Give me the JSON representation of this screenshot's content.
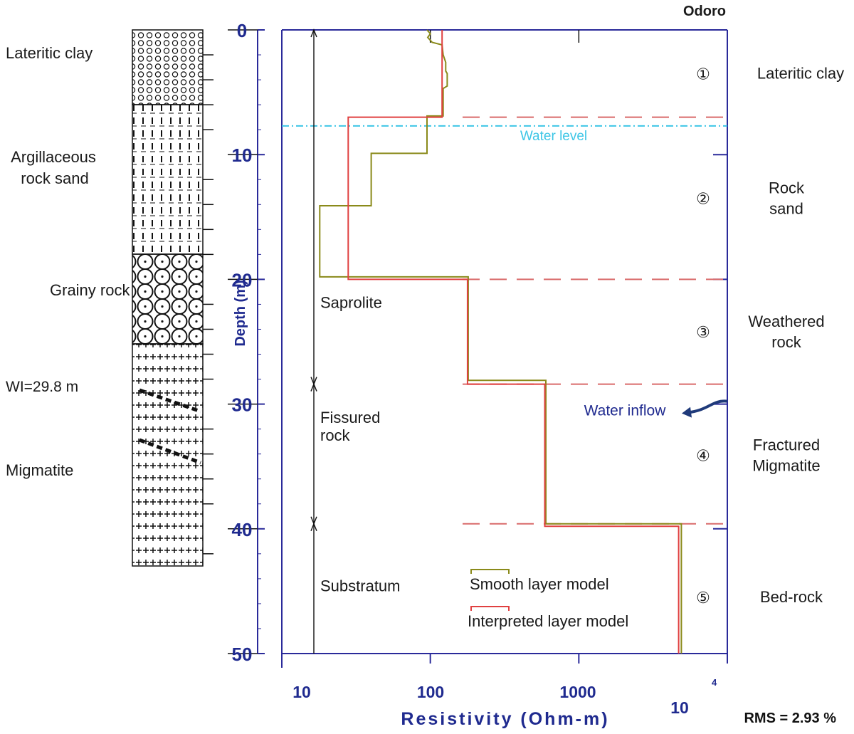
{
  "chart_data": {
    "type": "line",
    "title": "Odoro",
    "xlabel": "Resistivity  (Ohm-m)",
    "ylabel": "Depth (m)",
    "x_scale": "log",
    "xlim": [
      10,
      10000
    ],
    "ylim": [
      0,
      50
    ],
    "x_ticks": [
      "10",
      "100",
      "1000",
      "10"
    ],
    "x_tick_exponent": "4",
    "y_ticks": [
      "0",
      "10",
      "20",
      "30",
      "40",
      "50"
    ],
    "rms_text": "RMS = 2.93 %",
    "series": [
      {
        "name": "Smooth layer model",
        "color": "#8a8a1a",
        "points": [
          [
            95,
            0
          ],
          [
            100,
            0.3
          ],
          [
            96,
            0.6
          ],
          [
            103,
            1.0
          ],
          [
            120,
            1.2
          ],
          [
            122,
            2.0
          ],
          [
            127,
            2.6
          ],
          [
            127,
            3.3
          ],
          [
            130,
            3.5
          ],
          [
            130,
            4.5
          ],
          [
            122,
            4.7
          ],
          [
            122,
            6.9
          ],
          [
            95,
            6.9
          ],
          [
            95,
            9.9
          ],
          [
            40,
            9.9
          ],
          [
            40,
            14.1
          ],
          [
            18,
            14.1
          ],
          [
            18,
            19.8
          ],
          [
            180,
            19.8
          ],
          [
            180,
            28.1
          ],
          [
            600,
            28.1
          ],
          [
            600,
            39.6
          ],
          [
            4900,
            39.6
          ],
          [
            4900,
            50
          ]
        ]
      },
      {
        "name": "Interpreted layer model",
        "color": "#e04040",
        "points": [
          [
            120,
            0
          ],
          [
            120,
            7.0
          ],
          [
            28,
            7.0
          ],
          [
            28,
            20.0
          ],
          [
            178,
            20.0
          ],
          [
            178,
            28.4
          ],
          [
            590,
            28.4
          ],
          [
            590,
            39.8
          ],
          [
            4700,
            39.8
          ],
          [
            4700,
            50
          ]
        ]
      }
    ],
    "boundary_depths": [
      7.0,
      20.0,
      28.4,
      39.6
    ],
    "water_level_depth": 7.7,
    "water_level_label": "Water level",
    "water_inflow_label": "Water inflow",
    "water_inflow_depth": 30,
    "zones": [
      {
        "label": "Saprolite",
        "from": 0,
        "to": 28.4
      },
      {
        "label": "Fissured rock",
        "from": 28.4,
        "to": 39.6
      },
      {
        "label": "Substratum",
        "from": 39.6,
        "to": 50
      }
    ],
    "layers": [
      {
        "number": "①",
        "name": "Lateritic clay",
        "depth": 3.5
      },
      {
        "number": "②",
        "name": "Rock sand",
        "depth": 13.5
      },
      {
        "number": "③",
        "name": "Weathered rock",
        "depth": 24.2
      },
      {
        "number": "④",
        "name": "Fractured Migmatite",
        "depth": 34.1
      },
      {
        "number": "⑤",
        "name": "Bed-rock",
        "depth": 45.5
      }
    ],
    "lithology": [
      {
        "label": "Lateritic clay",
        "from": 0,
        "to": 6,
        "pattern": "circles"
      },
      {
        "label": "Argillaceous rock sand",
        "from": 6,
        "to": 18,
        "pattern": "dashes"
      },
      {
        "label": "Grainy rock",
        "from": 18,
        "to": 25.5,
        "pattern": "gravel"
      },
      {
        "label": "Migmatite",
        "from": 25.5,
        "to": 43,
        "pattern": "crosses"
      }
    ],
    "wi_label": "WI=29.8 m"
  }
}
